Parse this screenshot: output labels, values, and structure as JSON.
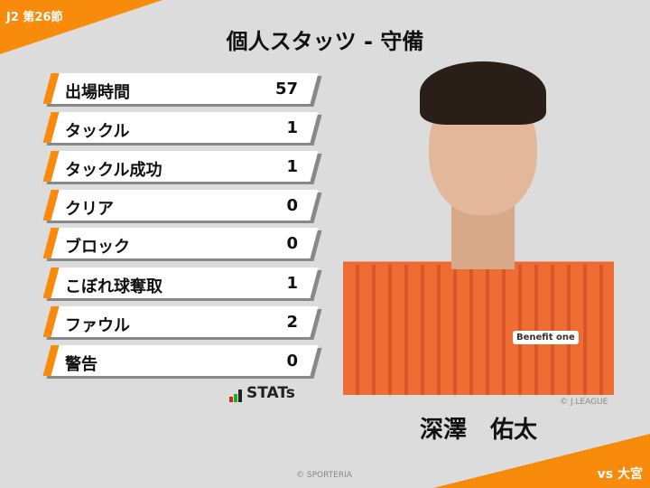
{
  "header": {
    "match": "J2 第26節",
    "title": "個人スタッツ - 守備",
    "opponent": "vs 大宮"
  },
  "stats": [
    {
      "label": "出場時間",
      "value": "57"
    },
    {
      "label": "タックル",
      "value": "1"
    },
    {
      "label": "タックル成功",
      "value": "1"
    },
    {
      "label": "クリア",
      "value": "0"
    },
    {
      "label": "ブロック",
      "value": "0"
    },
    {
      "label": "こぼれ球奪取",
      "value": "1"
    },
    {
      "label": "ファウル",
      "value": "2"
    },
    {
      "label": "警告",
      "value": "0"
    }
  ],
  "logo": {
    "text": "STATs"
  },
  "player": {
    "name": "深澤　佑太",
    "sponsor": "Benefit one",
    "photo_credit": "© J.LEAGUE"
  },
  "footer": {
    "credit": "© SPORTERIA"
  },
  "colors": {
    "accent": "#f98b0c",
    "background": "#dcdcdc"
  }
}
